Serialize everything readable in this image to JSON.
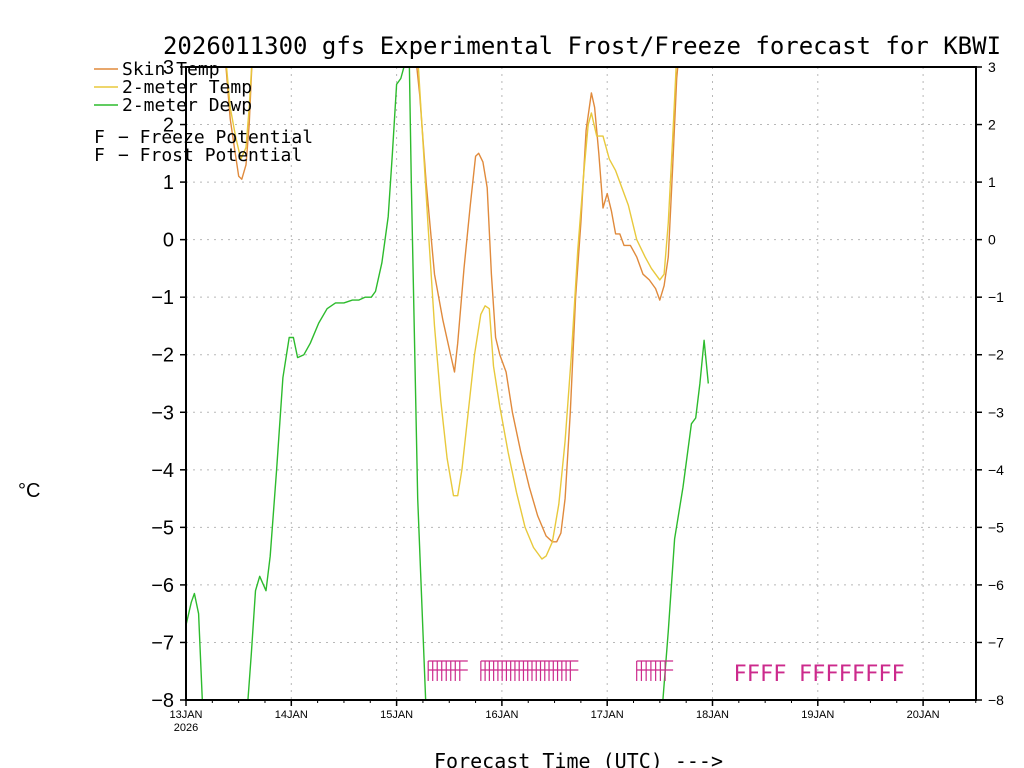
{
  "chart_data": {
    "type": "line",
    "title": "2026011300 gfs Experimental Frost/Freeze forecast for KBWI",
    "ylabel": "°C",
    "xlabel": "Forecast Time (UTC) --->",
    "ylim": [
      -8,
      3
    ],
    "xlim": [
      0,
      7.6
    ],
    "yticks": [
      -8,
      -7,
      -6,
      -5,
      -4,
      -3,
      -2,
      -1,
      0,
      1,
      2,
      3
    ],
    "ytick_labels": [
      "−8",
      "−7",
      "−6",
      "−5",
      "−4",
      "−3",
      "−2",
      "−1",
      "0",
      "1",
      "2",
      "3"
    ],
    "xticks": [
      {
        "x": 0,
        "label": "13JAN",
        "sublabel": "2026"
      },
      {
        "x": 1,
        "label": "14JAN"
      },
      {
        "x": 2,
        "label": "15JAN"
      },
      {
        "x": 3,
        "label": "16JAN"
      },
      {
        "x": 4,
        "label": "17JAN"
      },
      {
        "x": 5,
        "label": "18JAN"
      },
      {
        "x": 6,
        "label": "19JAN"
      },
      {
        "x": 7,
        "label": "20JAN"
      }
    ],
    "grid": true,
    "series": [
      {
        "name": "Skin Temp",
        "legend_label": "Skin Temp",
        "color": "#e08a3c",
        "points": [
          [
            0.0,
            3.2
          ],
          [
            0.38,
            3.0
          ],
          [
            0.42,
            2.1
          ],
          [
            0.46,
            1.6
          ],
          [
            0.5,
            1.1
          ],
          [
            0.53,
            1.05
          ],
          [
            0.57,
            1.3
          ],
          [
            0.6,
            2.0
          ],
          [
            0.63,
            3.2
          ],
          [
            2.18,
            3.2
          ],
          [
            2.22,
            2.5
          ],
          [
            2.28,
            1.0
          ],
          [
            2.36,
            -0.6
          ],
          [
            2.44,
            -1.4
          ],
          [
            2.5,
            -1.9
          ],
          [
            2.55,
            -2.3
          ],
          [
            2.58,
            -1.8
          ],
          [
            2.64,
            -0.5
          ],
          [
            2.7,
            0.6
          ],
          [
            2.75,
            1.45
          ],
          [
            2.78,
            1.5
          ],
          [
            2.82,
            1.35
          ],
          [
            2.86,
            0.9
          ],
          [
            2.9,
            -0.6
          ],
          [
            2.94,
            -1.7
          ],
          [
            2.98,
            -2.0
          ],
          [
            3.04,
            -2.3
          ],
          [
            3.1,
            -3.0
          ],
          [
            3.18,
            -3.7
          ],
          [
            3.26,
            -4.3
          ],
          [
            3.34,
            -4.8
          ],
          [
            3.42,
            -5.15
          ],
          [
            3.48,
            -5.25
          ],
          [
            3.52,
            -5.25
          ],
          [
            3.56,
            -5.1
          ],
          [
            3.6,
            -4.5
          ],
          [
            3.65,
            -3.0
          ],
          [
            3.7,
            -1.0
          ],
          [
            3.75,
            0.3
          ],
          [
            3.8,
            1.9
          ],
          [
            3.85,
            2.55
          ],
          [
            3.88,
            2.3
          ],
          [
            3.92,
            1.5
          ],
          [
            3.96,
            0.55
          ],
          [
            4.0,
            0.8
          ],
          [
            4.04,
            0.5
          ],
          [
            4.08,
            0.1
          ],
          [
            4.12,
            0.1
          ],
          [
            4.16,
            -0.1
          ],
          [
            4.22,
            -0.1
          ],
          [
            4.28,
            -0.3
          ],
          [
            4.34,
            -0.6
          ],
          [
            4.4,
            -0.7
          ],
          [
            4.46,
            -0.85
          ],
          [
            4.5,
            -1.05
          ],
          [
            4.54,
            -0.8
          ],
          [
            4.58,
            -0.3
          ],
          [
            4.62,
            1.2
          ],
          [
            4.66,
            2.8
          ],
          [
            4.68,
            3.2
          ]
        ]
      },
      {
        "name": "2-meter Temp",
        "legend_label": "2-meter Temp",
        "color": "#e8c93c",
        "points": [
          [
            0.0,
            3.2
          ],
          [
            0.38,
            3.1
          ],
          [
            0.42,
            2.3
          ],
          [
            0.47,
            1.8
          ],
          [
            0.52,
            1.4
          ],
          [
            0.57,
            1.6
          ],
          [
            0.6,
            2.3
          ],
          [
            0.63,
            3.2
          ],
          [
            2.2,
            3.2
          ],
          [
            2.24,
            2.0
          ],
          [
            2.3,
            0.2
          ],
          [
            2.36,
            -1.5
          ],
          [
            2.42,
            -2.8
          ],
          [
            2.48,
            -3.8
          ],
          [
            2.54,
            -4.45
          ],
          [
            2.58,
            -4.45
          ],
          [
            2.62,
            -4.0
          ],
          [
            2.68,
            -3.0
          ],
          [
            2.74,
            -2.0
          ],
          [
            2.8,
            -1.3
          ],
          [
            2.84,
            -1.15
          ],
          [
            2.88,
            -1.2
          ],
          [
            2.92,
            -2.2
          ],
          [
            2.98,
            -2.9
          ],
          [
            3.06,
            -3.7
          ],
          [
            3.14,
            -4.4
          ],
          [
            3.22,
            -5.0
          ],
          [
            3.3,
            -5.35
          ],
          [
            3.38,
            -5.55
          ],
          [
            3.42,
            -5.5
          ],
          [
            3.48,
            -5.25
          ],
          [
            3.54,
            -4.6
          ],
          [
            3.6,
            -3.5
          ],
          [
            3.66,
            -2.0
          ],
          [
            3.72,
            -0.2
          ],
          [
            3.78,
            1.2
          ],
          [
            3.82,
            2.0
          ],
          [
            3.85,
            2.2
          ],
          [
            3.9,
            1.8
          ],
          [
            3.96,
            1.8
          ],
          [
            4.02,
            1.4
          ],
          [
            4.08,
            1.2
          ],
          [
            4.14,
            0.9
          ],
          [
            4.2,
            0.6
          ],
          [
            4.28,
            0.0
          ],
          [
            4.36,
            -0.3
          ],
          [
            4.42,
            -0.5
          ],
          [
            4.5,
            -0.7
          ],
          [
            4.54,
            -0.6
          ],
          [
            4.58,
            0.3
          ],
          [
            4.62,
            1.7
          ],
          [
            4.66,
            3.2
          ]
        ]
      },
      {
        "name": "2-meter Dewp",
        "legend_label": "2-meter Dewp",
        "color": "#2dbb2d",
        "points": [
          [
            0.0,
            -6.7
          ],
          [
            0.05,
            -6.3
          ],
          [
            0.08,
            -6.15
          ],
          [
            0.12,
            -6.5
          ],
          [
            0.16,
            -8.2
          ],
          [
            0.58,
            -8.2
          ],
          [
            0.62,
            -7.2
          ],
          [
            0.66,
            -6.1
          ],
          [
            0.7,
            -5.85
          ],
          [
            0.76,
            -6.1
          ],
          [
            0.8,
            -5.5
          ],
          [
            0.86,
            -4.0
          ],
          [
            0.92,
            -2.4
          ],
          [
            0.98,
            -1.7
          ],
          [
            1.02,
            -1.7
          ],
          [
            1.06,
            -2.05
          ],
          [
            1.12,
            -2.0
          ],
          [
            1.18,
            -1.8
          ],
          [
            1.26,
            -1.45
          ],
          [
            1.34,
            -1.2
          ],
          [
            1.42,
            -1.1
          ],
          [
            1.5,
            -1.1
          ],
          [
            1.58,
            -1.05
          ],
          [
            1.64,
            -1.05
          ],
          [
            1.7,
            -1.0
          ],
          [
            1.76,
            -1.0
          ],
          [
            1.8,
            -0.9
          ],
          [
            1.86,
            -0.4
          ],
          [
            1.92,
            0.4
          ],
          [
            1.96,
            1.5
          ],
          [
            2.0,
            2.7
          ],
          [
            2.04,
            2.8
          ],
          [
            2.1,
            3.2
          ],
          [
            2.12,
            3.2
          ],
          [
            2.14,
            1.0
          ],
          [
            2.2,
            -4.5
          ],
          [
            2.28,
            -8.2
          ],
          [
            4.52,
            -8.2
          ],
          [
            4.58,
            -6.8
          ],
          [
            4.64,
            -5.2
          ],
          [
            4.72,
            -4.3
          ],
          [
            4.8,
            -3.2
          ],
          [
            4.84,
            -3.1
          ],
          [
            4.88,
            -2.5
          ],
          [
            4.92,
            -1.75
          ],
          [
            4.96,
            -2.5
          ]
        ]
      }
    ],
    "potential_legend": [
      {
        "letter": "F",
        "label": "− Freeze Potential",
        "color": "#cc2a8c"
      },
      {
        "letter": "F",
        "label": "− Frost Potential",
        "color": "#5a5aee"
      }
    ],
    "freeze_markers": {
      "color": "#cc2a8c",
      "y": -7.6,
      "dense_groups": [
        {
          "start": 2.3,
          "end": 2.6,
          "count": 8
        },
        {
          "start": 2.8,
          "end": 3.65,
          "count": 22
        },
        {
          "start": 4.28,
          "end": 4.55,
          "count": 7
        }
      ],
      "labels": [
        {
          "x": 5.2,
          "text": "FFFF"
        },
        {
          "x": 5.82,
          "text": "FFFFFFFF"
        }
      ]
    }
  }
}
